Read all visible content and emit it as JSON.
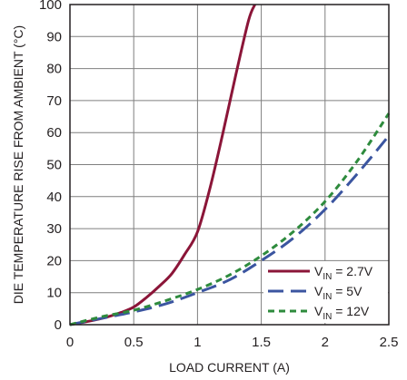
{
  "chart_data": {
    "type": "line",
    "title": "",
    "xlabel": "LOAD CURRENT (A)",
    "ylabel": "DIE TEMPERATURE RISE FROM AMBIENT (°C)",
    "xlim": [
      0,
      2.5
    ],
    "ylim": [
      0,
      100
    ],
    "xticks": [
      0,
      0.5,
      1,
      1.5,
      2,
      2.5
    ],
    "xtick_labels": [
      "0",
      "0.5",
      "1",
      "1.5",
      "2",
      "2.5"
    ],
    "yticks": [
      0,
      10,
      20,
      30,
      40,
      50,
      60,
      70,
      80,
      90,
      100
    ],
    "ytick_labels": [
      "0",
      "10",
      "20",
      "30",
      "40",
      "50",
      "60",
      "70",
      "80",
      "90",
      "100"
    ],
    "grid": true,
    "legend_position": "bottom-right",
    "series": [
      {
        "name_main": "V",
        "name_sub": "IN",
        "name_rest": " = 2.7V",
        "color": "#8b1538",
        "dash": "solid",
        "x": [
          0,
          0.1,
          0.2,
          0.3,
          0.4,
          0.5,
          0.6,
          0.7,
          0.8,
          0.9,
          1.0,
          1.1,
          1.2,
          1.3,
          1.4,
          1.45
        ],
        "y": [
          0,
          0.7,
          1.5,
          2.5,
          3.8,
          5.5,
          8.5,
          12,
          16,
          22,
          29,
          43,
          60,
          78,
          95,
          100
        ]
      },
      {
        "name_main": "V",
        "name_sub": "IN",
        "name_rest": " = 5V",
        "color": "#3b55a0",
        "dash": "long-dash",
        "x": [
          0,
          0.25,
          0.5,
          0.75,
          1.0,
          1.25,
          1.5,
          1.75,
          2.0,
          2.25,
          2.5
        ],
        "y": [
          0,
          2,
          4,
          6.5,
          10,
          14,
          20,
          27,
          36,
          47,
          59
        ]
      },
      {
        "name_main": "V",
        "name_sub": "IN",
        "name_rest": " = 12V",
        "color": "#2e8b3d",
        "dash": "short-dash",
        "x": [
          0,
          0.25,
          0.5,
          0.75,
          1.0,
          1.25,
          1.5,
          1.75,
          2.0,
          2.25,
          2.5
        ],
        "y": [
          0,
          2.5,
          4.5,
          7.5,
          11,
          15.5,
          21.5,
          29,
          38.5,
          51,
          66
        ]
      }
    ]
  }
}
